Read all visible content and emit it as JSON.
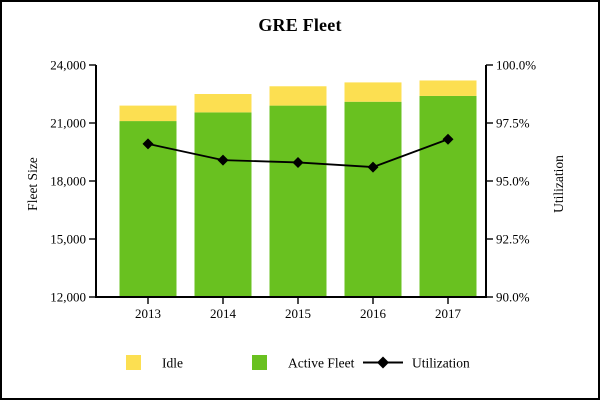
{
  "title": "GRE Fleet",
  "chart_data": {
    "type": "bar",
    "subtype": "stacked-bars-with-line-overlay",
    "title": "GRE Fleet",
    "categories": [
      "2013",
      "2014",
      "2015",
      "2016",
      "2017"
    ],
    "series": [
      {
        "name": "Active Fleet",
        "type": "bar",
        "color": "#69C120",
        "axis": "left",
        "values": [
          21100,
          21550,
          21900,
          22100,
          22400
        ]
      },
      {
        "name": "Idle",
        "type": "bar",
        "color": "#FCDF51",
        "axis": "left",
        "values": [
          800,
          950,
          1000,
          1000,
          800
        ]
      },
      {
        "name": "Utilization",
        "type": "line",
        "color": "#000000",
        "marker": "diamond",
        "axis": "right",
        "values": [
          96.6,
          95.9,
          95.8,
          95.6,
          96.8
        ]
      }
    ],
    "left_axis": {
      "label": "Fleet Size",
      "min": 12000,
      "max": 24000,
      "ticks": [
        "12,000",
        "15,000",
        "18,000",
        "21,000",
        "24,000"
      ]
    },
    "right_axis": {
      "label": "Utilization",
      "min": 90,
      "max": 100,
      "ticks": [
        "90.0%",
        "92.5%",
        "95.0%",
        "97.5%",
        "100.0%"
      ]
    },
    "legend": [
      "Idle",
      "Active Fleet",
      "Utilization"
    ],
    "legend_position": "bottom",
    "grid": "off"
  }
}
